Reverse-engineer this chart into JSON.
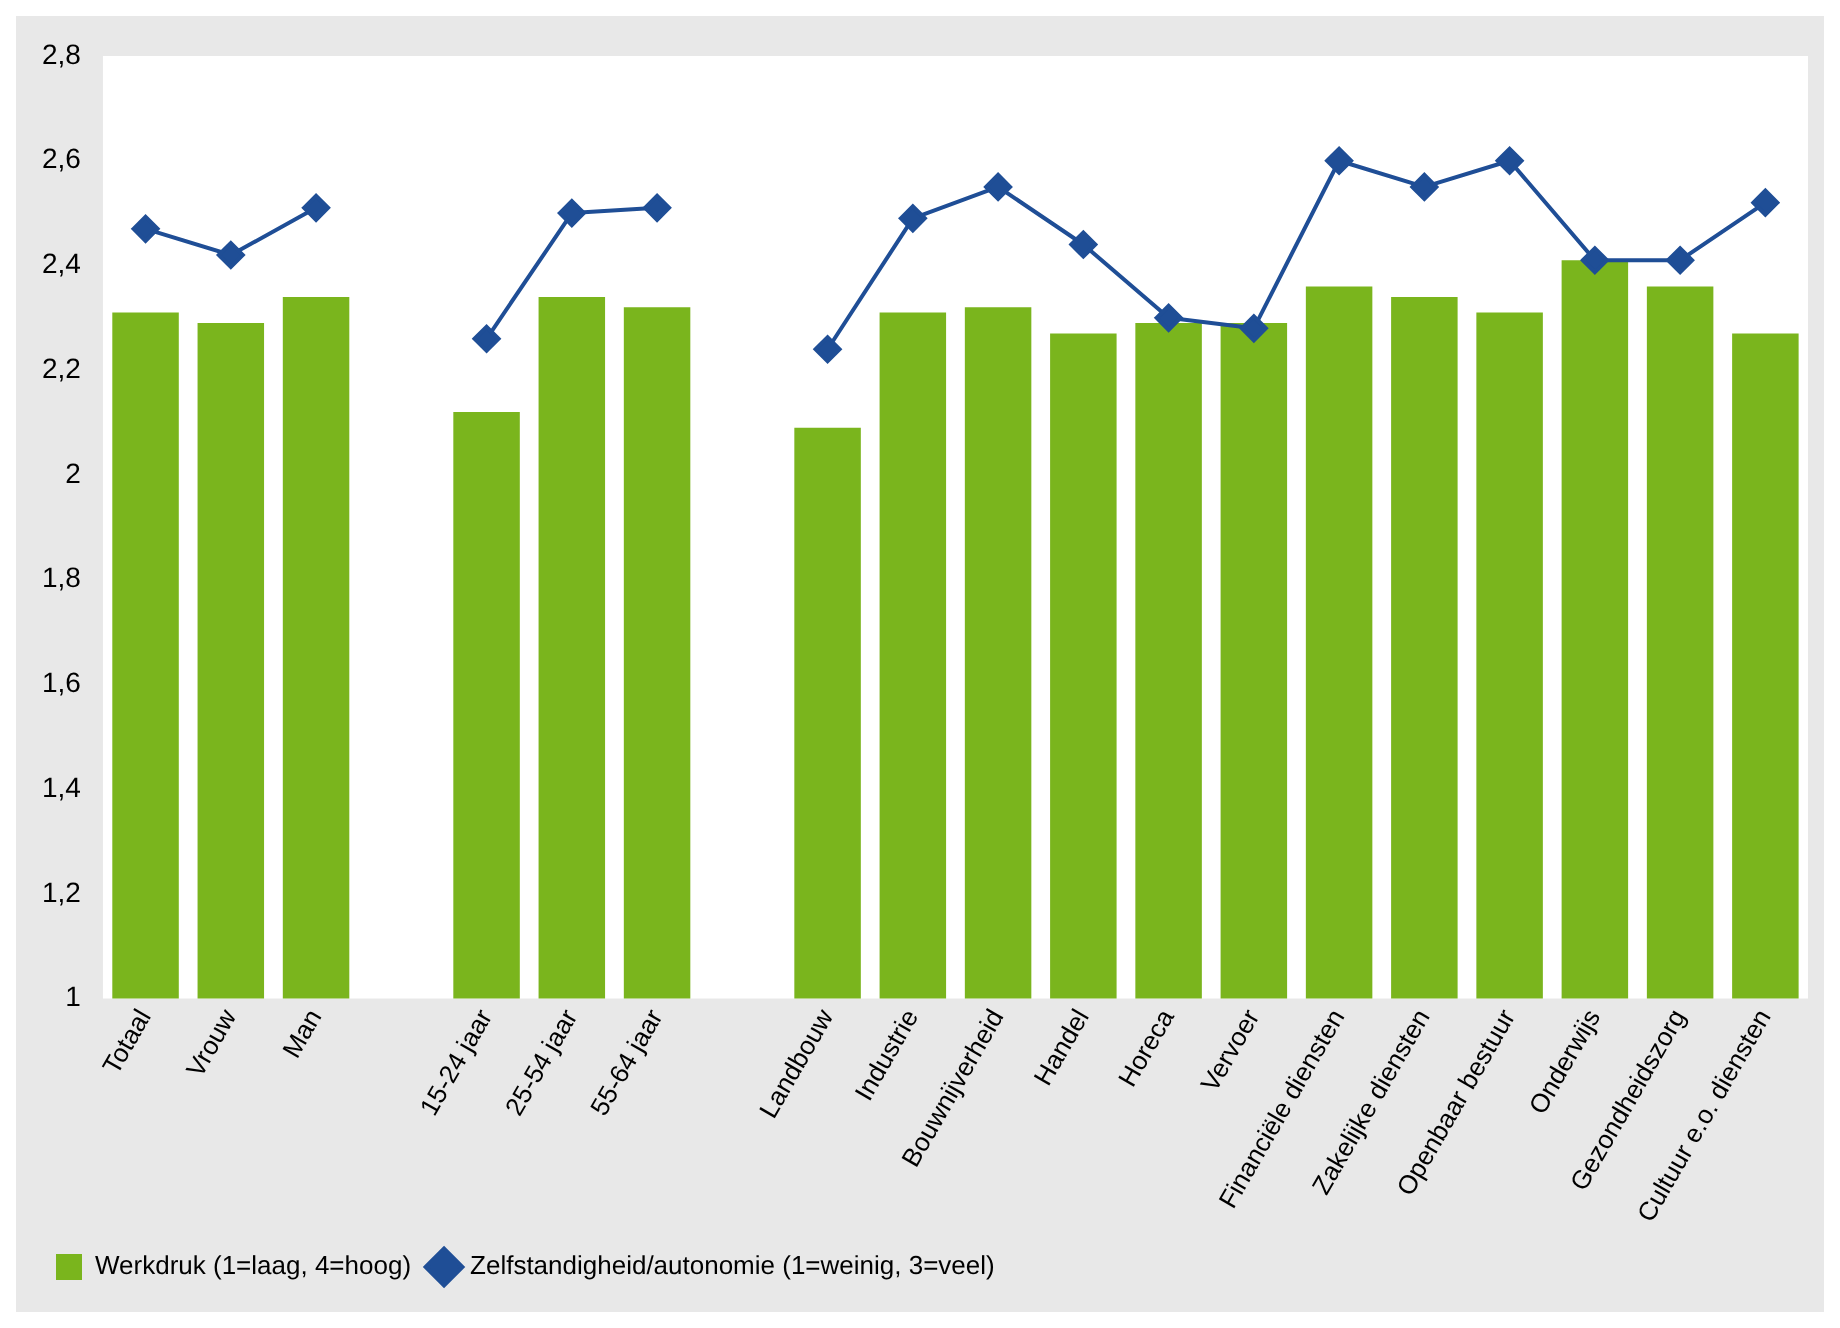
{
  "chart_data": {
    "type": "bar",
    "categories": [
      "Totaal",
      "Vrouw",
      "Man",
      null,
      "15-24 jaar",
      "25-54 jaar",
      "55-64 jaar",
      null,
      "Landbouw",
      "Industrie",
      "Bouwnijverheid",
      "Handel",
      "Horeca",
      "Vervoer",
      "Financiële diensten",
      "Zakelijke diensten",
      "Openbaar bestuur",
      "Onderwijs",
      "Gezondheidszorg",
      "Cultuur e.o. diensten"
    ],
    "series": [
      {
        "name": "Werkdruk (1=laag, 4=hoog)",
        "color": "#7ab51d",
        "values": [
          2.31,
          2.29,
          2.34,
          null,
          2.12,
          2.34,
          2.32,
          null,
          2.09,
          2.31,
          2.32,
          2.27,
          2.29,
          2.29,
          2.36,
          2.34,
          2.31,
          2.41,
          2.36,
          2.27
        ]
      },
      {
        "name": "Zelfstandigheid/autonomie (1=weinig, 3=veel)",
        "type": "line",
        "color": "#1f4e96",
        "values": [
          2.47,
          2.42,
          2.51,
          null,
          2.26,
          2.5,
          2.51,
          null,
          2.24,
          2.49,
          2.55,
          2.44,
          2.3,
          2.28,
          2.6,
          2.55,
          2.6,
          2.41,
          2.41,
          2.52
        ]
      }
    ],
    "ylim": [
      1,
      2.8
    ],
    "yticks": [
      1,
      {
        "value": 1.2,
        "label": "1,2"
      },
      {
        "value": 1.4,
        "label": "1,4"
      },
      {
        "value": 1.6,
        "label": "1,6"
      },
      {
        "value": 1.8,
        "label": "1,8"
      },
      2,
      {
        "value": 2.2,
        "label": "2,2"
      },
      {
        "value": 2.4,
        "label": "2,4"
      },
      {
        "value": 2.6,
        "label": "2,6"
      },
      {
        "value": 2.8,
        "label": "2,8"
      }
    ],
    "grid": false,
    "legend": "bottom",
    "marker": "diamond",
    "line_style": "solid"
  }
}
